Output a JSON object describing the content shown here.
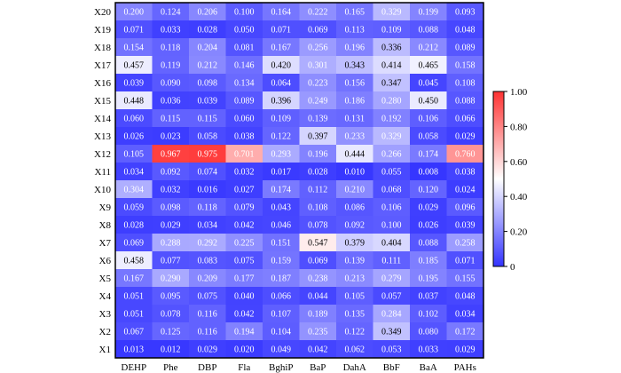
{
  "chart_data": {
    "type": "heatmap",
    "title": "",
    "xlabel": "",
    "ylabel": "",
    "x_categories": [
      "DEHP",
      "Phe",
      "DBP",
      "Fla",
      "BghiP",
      "BaP",
      "DahA",
      "BbF",
      "BaA",
      "PAHs"
    ],
    "y_categories": [
      "X20",
      "X19",
      "X18",
      "X17",
      "X16",
      "X15",
      "X14",
      "X13",
      "X12",
      "X11",
      "X10",
      "X9",
      "X8",
      "X7",
      "X6",
      "X5",
      "X4",
      "X3",
      "X2",
      "X1"
    ],
    "values": [
      [
        0.2,
        0.124,
        0.206,
        0.1,
        0.164,
        0.222,
        0.165,
        0.329,
        0.199,
        0.093
      ],
      [
        0.071,
        0.033,
        0.028,
        0.05,
        0.071,
        0.069,
        0.113,
        0.109,
        0.088,
        0.048
      ],
      [
        0.154,
        0.118,
        0.204,
        0.081,
        0.167,
        0.256,
        0.196,
        0.336,
        0.212,
        0.089
      ],
      [
        0.457,
        0.119,
        0.212,
        0.146,
        0.42,
        0.301,
        0.343,
        0.414,
        0.465,
        0.158
      ],
      [
        0.039,
        0.09,
        0.098,
        0.134,
        0.064,
        0.223,
        0.156,
        0.347,
        0.045,
        0.108
      ],
      [
        0.448,
        0.036,
        0.039,
        0.089,
        0.396,
        0.249,
        0.186,
        0.28,
        0.45,
        0.088
      ],
      [
        0.06,
        0.115,
        0.115,
        0.06,
        0.109,
        0.139,
        0.131,
        0.192,
        0.106,
        0.066
      ],
      [
        0.026,
        0.023,
        0.058,
        0.038,
        0.122,
        0.397,
        0.233,
        0.329,
        0.058,
        0.029
      ],
      [
        0.105,
        0.967,
        0.975,
        0.701,
        0.293,
        0.196,
        0.444,
        0.266,
        0.174,
        0.76
      ],
      [
        0.034,
        0.092,
        0.074,
        0.032,
        0.017,
        0.028,
        0.01,
        0.055,
        0.008,
        0.038
      ],
      [
        0.304,
        0.032,
        0.016,
        0.027,
        0.174,
        0.112,
        0.21,
        0.068,
        0.12,
        0.024
      ],
      [
        0.059,
        0.098,
        0.118,
        0.079,
        0.043,
        0.108,
        0.086,
        0.106,
        0.029,
        0.096
      ],
      [
        0.028,
        0.029,
        0.034,
        0.042,
        0.046,
        0.078,
        0.092,
        0.1,
        0.026,
        0.039
      ],
      [
        0.069,
        0.288,
        0.292,
        0.225,
        0.151,
        0.547,
        0.379,
        0.404,
        0.088,
        0.258
      ],
      [
        0.458,
        0.077,
        0.083,
        0.075,
        0.159,
        0.069,
        0.139,
        0.111,
        0.185,
        0.071
      ],
      [
        0.167,
        0.29,
        0.209,
        0.177,
        0.187,
        0.238,
        0.213,
        0.279,
        0.195,
        0.155
      ],
      [
        0.051,
        0.095,
        0.075,
        0.04,
        0.066,
        0.044,
        0.105,
        0.057,
        0.037,
        0.048
      ],
      [
        0.051,
        0.078,
        0.116,
        0.042,
        0.107,
        0.189,
        0.135,
        0.284,
        0.102,
        0.034
      ],
      [
        0.067,
        0.125,
        0.116,
        0.194,
        0.104,
        0.235,
        0.122,
        0.349,
        0.08,
        0.172
      ],
      [
        0.013,
        0.012,
        0.029,
        0.02,
        0.049,
        0.042,
        0.062,
        0.053,
        0.033,
        0.029
      ]
    ],
    "colorbar": {
      "range": [
        0,
        1
      ],
      "ticks": [
        0,
        0.2,
        0.4,
        0.6,
        0.8,
        1.0
      ],
      "tick_labels": [
        "0",
        "0.20",
        "0.40",
        "0.60",
        "0.80",
        "1.00"
      ],
      "placement": "right",
      "colormap": [
        "#3333ff",
        "#ffffff",
        "#ff3333"
      ]
    },
    "grid": false
  }
}
